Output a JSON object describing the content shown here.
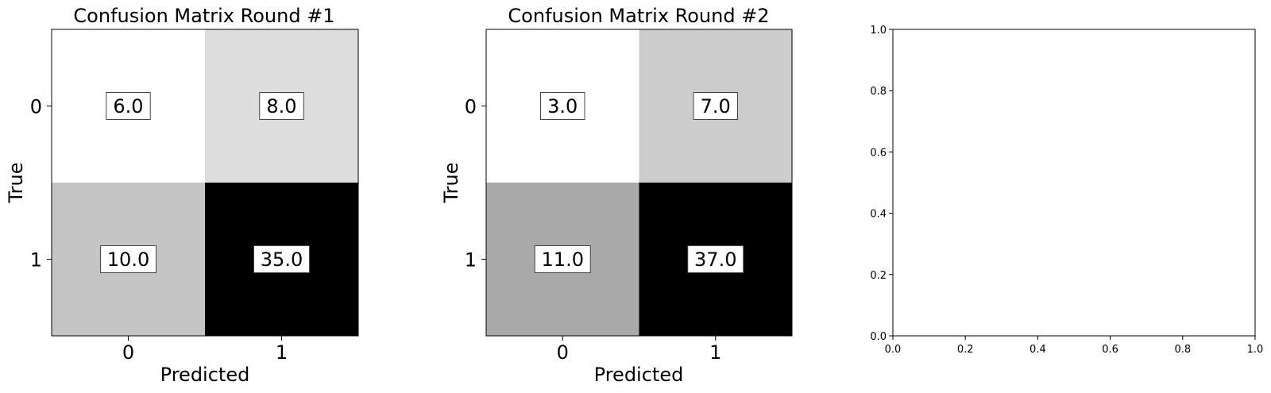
{
  "chart_data": [
    {
      "type": "heatmap",
      "title": "Confusion Matrix Round #1",
      "xlabel": "Predicted",
      "ylabel": "True",
      "x_categories": [
        "0",
        "1"
      ],
      "y_categories": [
        "0",
        "1"
      ],
      "values": [
        [
          6.0,
          8.0
        ],
        [
          10.0,
          35.0
        ]
      ],
      "value_labels": [
        [
          "6.0",
          "8.0"
        ],
        [
          "10.0",
          "35.0"
        ]
      ],
      "colormap": "Greys"
    },
    {
      "type": "heatmap",
      "title": "Confusion Matrix Round #2",
      "xlabel": "Predicted",
      "ylabel": "True",
      "x_categories": [
        "0",
        "1"
      ],
      "y_categories": [
        "0",
        "1"
      ],
      "values": [
        [
          3.0,
          7.0
        ],
        [
          11.0,
          37.0
        ]
      ],
      "value_labels": [
        [
          "3.0",
          "7.0"
        ],
        [
          "11.0",
          "37.0"
        ]
      ],
      "colormap": "Greys"
    },
    {
      "type": "scatter",
      "title": "",
      "xlabel": "",
      "ylabel": "",
      "xlim": [
        0.0,
        1.0
      ],
      "ylim": [
        0.0,
        1.0
      ],
      "x_ticks": [
        "0.0",
        "0.2",
        "0.4",
        "0.6",
        "0.8",
        "1.0"
      ],
      "y_ticks": [
        "0.0",
        "0.2",
        "0.4",
        "0.6",
        "0.8",
        "1.0"
      ],
      "series": []
    }
  ]
}
